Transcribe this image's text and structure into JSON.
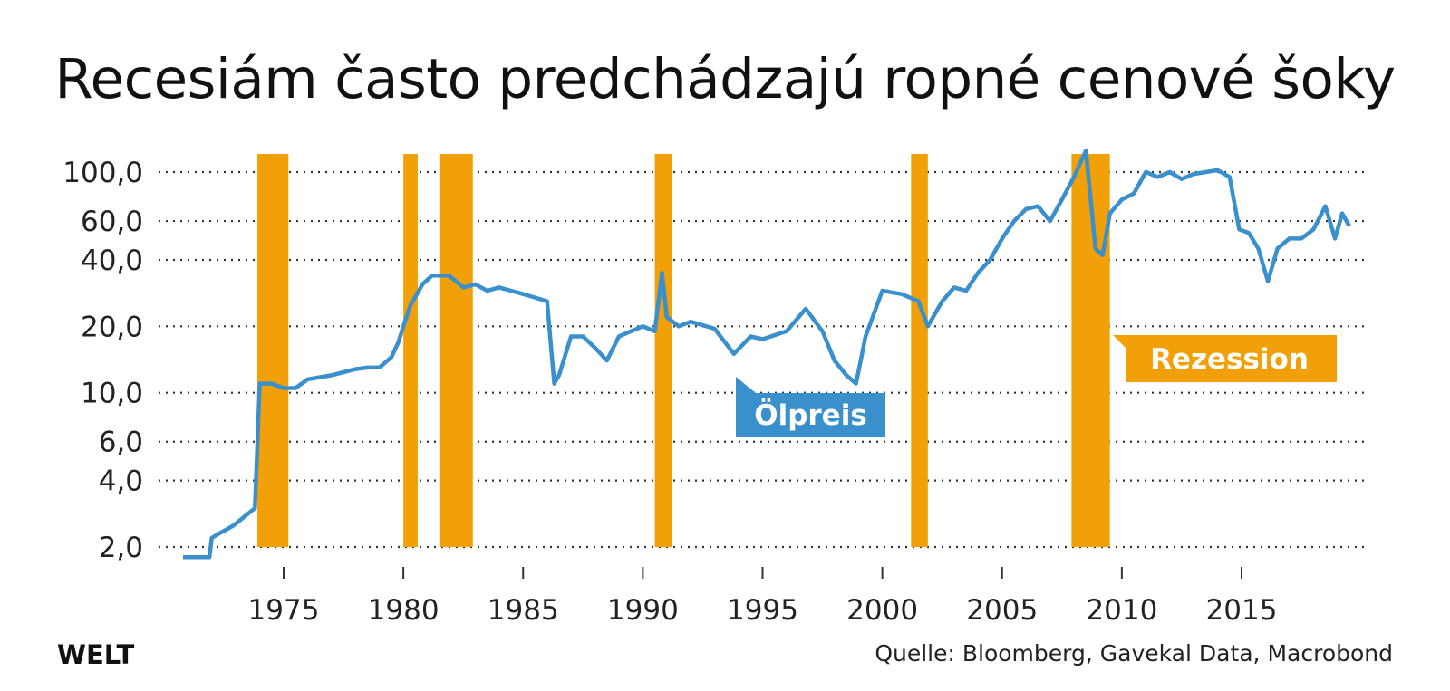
{
  "title": "Recesiám často predchádzajú ropné cenové šoky",
  "footer": {
    "brand": "WELT",
    "source": "Quelle: Bloomberg, Gavekal Data, Macrobond"
  },
  "colors": {
    "line": "#3a8fcd",
    "recession": "#f2a007",
    "grid": "#333333"
  },
  "chart_data": {
    "type": "line",
    "title": "Recesiám často predchádzajú ropné cenové šoky",
    "y_scale": "log",
    "ylim": [
      1.8,
      130
    ],
    "xlim": [
      1970.5,
      2019.6
    ],
    "y_ticks": [
      {
        "value": 2,
        "label": "2,0"
      },
      {
        "value": 4,
        "label": "4,0"
      },
      {
        "value": 6,
        "label": "6,0"
      },
      {
        "value": 10,
        "label": "10,0"
      },
      {
        "value": 20,
        "label": "20,0"
      },
      {
        "value": 40,
        "label": "40,0"
      },
      {
        "value": 60,
        "label": "60,0"
      },
      {
        "value": 100,
        "label": "100,0"
      }
    ],
    "x_ticks": [
      {
        "value": 1975,
        "label": "1975"
      },
      {
        "value": 1980,
        "label": "1980"
      },
      {
        "value": 1985,
        "label": "1985"
      },
      {
        "value": 1990,
        "label": "1990"
      },
      {
        "value": 1995,
        "label": "1995"
      },
      {
        "value": 2000,
        "label": "2000"
      },
      {
        "value": 2005,
        "label": "2005"
      },
      {
        "value": 2010,
        "label": "2010"
      },
      {
        "value": 2015,
        "label": "2015"
      }
    ],
    "grid": true,
    "series": [
      {
        "name": "Ölpreis",
        "x": [
          1970.8,
          1971.9,
          1972.0,
          1972.3,
          1972.9,
          1973.8,
          1974.0,
          1974.5,
          1975.0,
          1975.5,
          1976.0,
          1977.0,
          1978.0,
          1978.5,
          1979.0,
          1979.5,
          1979.8,
          1980.0,
          1980.3,
          1980.8,
          1981.2,
          1981.9,
          1982.2,
          1982.5,
          1983.0,
          1983.5,
          1984.0,
          1984.5,
          1985.0,
          1985.5,
          1986.0,
          1986.3,
          1986.5,
          1987.0,
          1987.5,
          1988.0,
          1988.5,
          1989.0,
          1989.5,
          1990.0,
          1990.5,
          1990.8,
          1991.0,
          1991.5,
          1992.0,
          1993.0,
          1993.8,
          1994.5,
          1995.0,
          1996.0,
          1996.8,
          1997.5,
          1998.0,
          1998.5,
          1998.9,
          1999.3,
          2000.0,
          2000.8,
          2001.5,
          2001.9,
          2002.5,
          2003.0,
          2003.5,
          2004.0,
          2004.5,
          2005.0,
          2005.5,
          2006.0,
          2006.5,
          2007.0,
          2007.5,
          2008.0,
          2008.5,
          2008.9,
          2009.2,
          2009.5,
          2010.0,
          2010.5,
          2011.0,
          2011.5,
          2012.0,
          2012.5,
          2013.0,
          2013.5,
          2014.0,
          2014.5,
          2014.9,
          2015.3,
          2015.7,
          2016.1,
          2016.5,
          2017.0,
          2017.5,
          2018.0,
          2018.5,
          2018.9,
          2019.2,
          2019.5
        ],
        "y": [
          1.8,
          1.8,
          2.2,
          2.3,
          2.5,
          3.0,
          11.0,
          11.0,
          10.5,
          10.5,
          11.5,
          12.0,
          12.8,
          13.0,
          13.0,
          14.5,
          17.0,
          20.0,
          25.0,
          31.0,
          34.0,
          34.0,
          32.0,
          30.0,
          31.0,
          29.0,
          30.0,
          29.0,
          28.0,
          27.0,
          26.0,
          11.0,
          12.0,
          18.0,
          18.0,
          16.0,
          14.0,
          18.0,
          19.0,
          20.0,
          19.0,
          35.0,
          22.0,
          20.0,
          21.0,
          19.5,
          15.0,
          18.0,
          17.5,
          19.0,
          24.0,
          19.0,
          14.0,
          12.0,
          11.0,
          18.0,
          29.0,
          28.0,
          26.0,
          20.0,
          26.0,
          30.0,
          29.0,
          35.0,
          40.0,
          50.0,
          60.0,
          68.0,
          70.0,
          60.0,
          75.0,
          95.0,
          125.0,
          45.0,
          42.0,
          65.0,
          75.0,
          80.0,
          100.0,
          95.0,
          100.0,
          93.0,
          98.0,
          100.0,
          102.0,
          95.0,
          55.0,
          53.0,
          45.0,
          32.0,
          45.0,
          50.0,
          50.0,
          55.0,
          70.0,
          50.0,
          65.0,
          57.0
        ]
      }
    ],
    "recessions": [
      {
        "start": 1973.9,
        "end": 1975.2
      },
      {
        "start": 1980.0,
        "end": 1980.6
      },
      {
        "start": 1981.5,
        "end": 1982.9
      },
      {
        "start": 1990.5,
        "end": 1991.2
      },
      {
        "start": 2001.2,
        "end": 2001.9
      },
      {
        "start": 2007.9,
        "end": 2009.5
      }
    ],
    "annotations": [
      {
        "text": "Ölpreis",
        "x": 1993.3,
        "y": 9.0,
        "color": "#3a8fcd"
      },
      {
        "text": "Rezession",
        "x": 2010.0,
        "y": 14.0,
        "color": "#f2a007"
      }
    ]
  }
}
